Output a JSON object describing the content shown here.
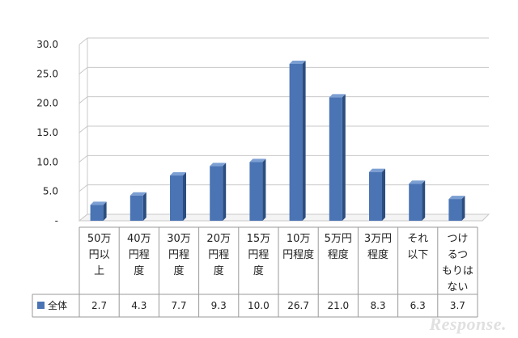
{
  "chart_data": {
    "type": "bar",
    "title": "",
    "xlabel": "",
    "ylabel": "",
    "categories": [
      "50万円以上",
      "40万円程度",
      "30万円程度",
      "20万円程度",
      "15万円程度",
      "10万円程度",
      "5万円程度",
      "3万円程度",
      "それ以下",
      "つけるつもりはない"
    ],
    "category_lines": [
      [
        "50万",
        "円以",
        "上"
      ],
      [
        "40万",
        "円程",
        "度"
      ],
      [
        "30万",
        "円程",
        "度"
      ],
      [
        "20万",
        "円程",
        "度"
      ],
      [
        "15万",
        "円程",
        "度"
      ],
      [
        "10万",
        "円程度"
      ],
      [
        "5万円",
        "程度"
      ],
      [
        "3万円",
        "程度"
      ],
      [
        "それ",
        "以下"
      ],
      [
        "つけ",
        "るつ",
        "もりは",
        "ない"
      ]
    ],
    "series": [
      {
        "name": "全体",
        "color": "#4a74b4",
        "values": [
          2.7,
          4.3,
          7.7,
          9.3,
          10.0,
          26.7,
          21.0,
          8.3,
          6.3,
          3.7
        ],
        "value_labels": [
          "2.7",
          "4.3",
          "7.7",
          "9.3",
          "10.0",
          "26.7",
          "21.0",
          "8.3",
          "6.3",
          "3.7"
        ]
      }
    ],
    "ylim": [
      0,
      30
    ],
    "yticks": [
      0,
      5,
      10,
      15,
      20,
      25,
      30
    ],
    "ytick_labels": [
      "-",
      "5.0",
      "10.0",
      "15.0",
      "20.0",
      "25.0",
      "30.0"
    ],
    "grid": true,
    "legend_placement": "data-table-row",
    "colors": {
      "bar": "#4a74b4",
      "bar_side": "#2c4d80",
      "bar_top": "#7c9fd3",
      "grid": "#c8c8c8",
      "axis": "#808080"
    }
  },
  "watermark": "Response."
}
